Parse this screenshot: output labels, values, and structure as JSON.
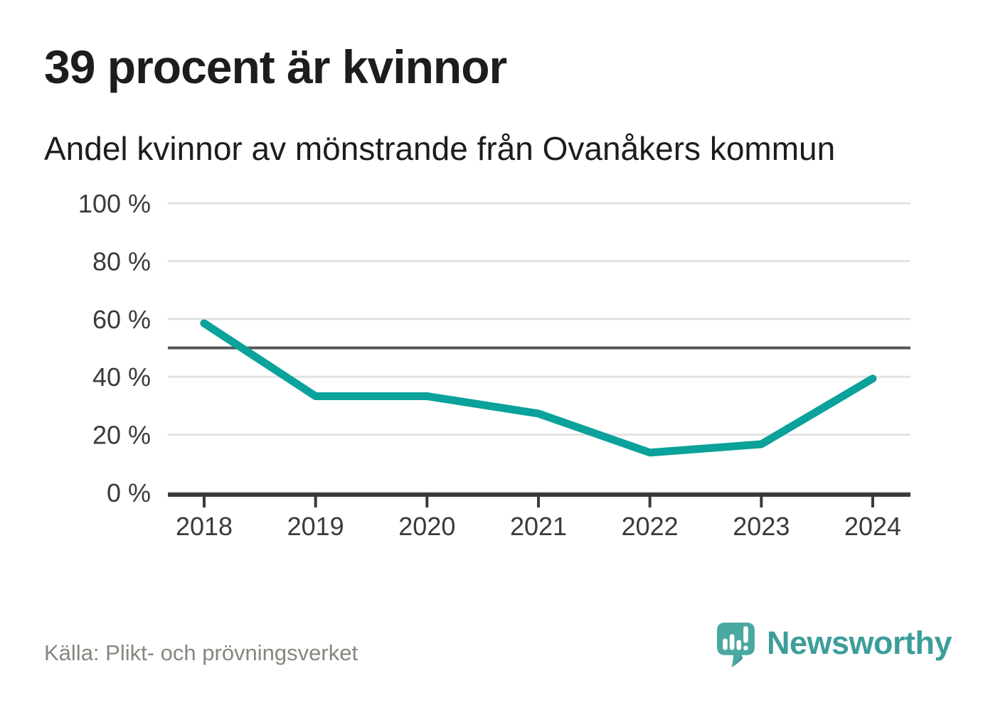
{
  "header": {
    "title": "39 procent är kvinnor",
    "subtitle": "Andel kvinnor av mönstrande från Ovanåkers kommun"
  },
  "chart_data": {
    "type": "line",
    "title": "39 procent är kvinnor",
    "subtitle": "Andel kvinnor av mönstrande från Ovanåkers kommun",
    "categories": [
      "2018",
      "2019",
      "2020",
      "2021",
      "2022",
      "2023",
      "2024"
    ],
    "series": [
      {
        "name": "Andel kvinnor av mönstrande",
        "color": "#0aa29a",
        "values": [
          58.5,
          33.3,
          33.3,
          27.3,
          13.8,
          16.7,
          39.4
        ]
      }
    ],
    "xlabel": "",
    "ylabel": "",
    "ylim": [
      0,
      100
    ],
    "yticks": [
      {
        "value": 0,
        "label": "0 %"
      },
      {
        "value": 20,
        "label": "20 %"
      },
      {
        "value": 40,
        "label": "40 %"
      },
      {
        "value": 60,
        "label": "60 %"
      },
      {
        "value": 80,
        "label": "80 %"
      },
      {
        "value": 100,
        "label": "100 %"
      }
    ],
    "reference_line": {
      "value": 50,
      "color": "#56565c"
    },
    "grid": true,
    "grid_color": "#e2e2e2",
    "axis_color": "#3a3a3a",
    "legend": "none"
  },
  "footer": {
    "source": "Källa: Plikt- och prövningsverket",
    "brand_name": "Newsworthy"
  },
  "colors": {
    "accent_teal": "#0aa29a",
    "logo_teal": "#4aa8a2",
    "logo_teal_dark": "#37918c",
    "logo_text_teal": "#3c9e9a",
    "text_dark": "#1d1d1b",
    "axis_gray": "#3a3a3a",
    "grid_gray": "#e2e2e2",
    "reference_gray": "#56565c",
    "source_gray": "#87867f"
  }
}
